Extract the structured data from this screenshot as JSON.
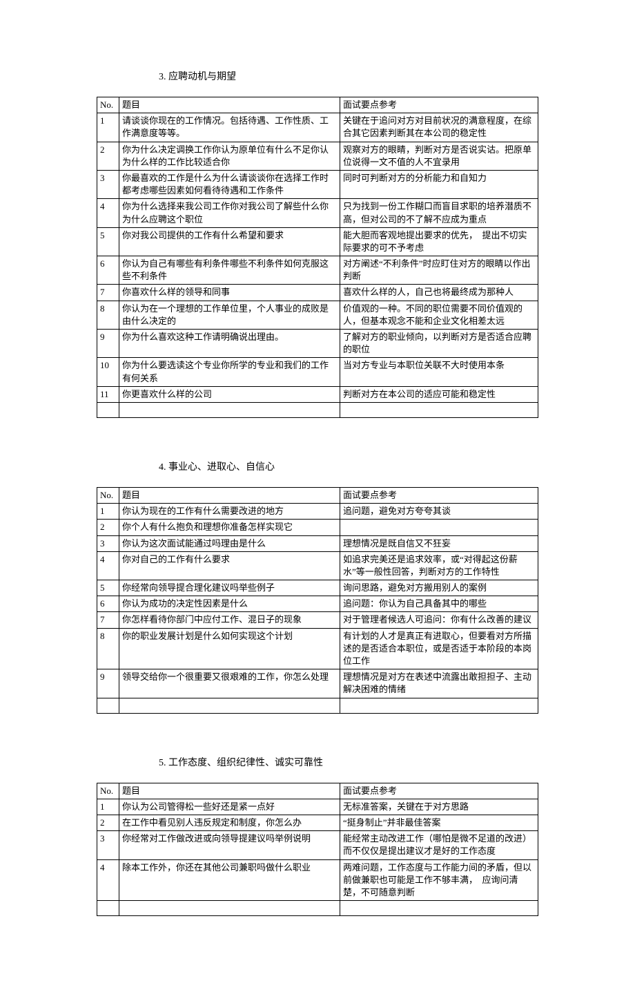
{
  "headers": {
    "no": "No.",
    "question": "题目",
    "ref": "面试要点参考"
  },
  "sections": [
    {
      "title": "3. 应聘动机与期望",
      "rows": [
        {
          "no": "1",
          "q": "请谈谈你现在的工作情况。包括待遇、工作性质、工作满意度等等。",
          "ref": "关键在于追问对方对目前状况的满意程度，在综合其它因素判断其在本公司的稳定性"
        },
        {
          "no": "2",
          "q": "你为什么决定调换工作你认为原单位有什么不足你认为什么样的工作比较适合你",
          "ref": "观察对方的眼睛，判断对方是否说实诂。把原单位说得一文不值的人不宜录用"
        },
        {
          "no": "3",
          "q": "你最喜欢的工作是什么为什么请谈谈你在选择工作时都考虑哪些因素如何看待待遇和工作条件",
          "ref": "同时可判断对方的分析能力和自知力"
        },
        {
          "no": "4",
          "q": "你为什么选择来我公司工作你对我公司了解些什么你为什么应聘这个职位",
          "ref": "只为找到一份工作糊口而盲目求职的培养潜质不高，但对公司的不了解不应成为重点"
        },
        {
          "no": "5",
          "q": "你对我公司提供的工作有什么希望和要求",
          "ref": "能大胆而客观地提出要求的优先，　提出不切实际要求的可不予考虑"
        },
        {
          "no": "6",
          "q": "你认为自己有哪些有利条件哪些不利条件如何克服这些不利条件",
          "ref": "对方阐述“不利条件”时应盯住对方的眼睛以作出判断"
        },
        {
          "no": "7",
          "q": "你喜欢什么样的领导和同事",
          "ref": "喜欢什么样的人，自己也将最终成为那种人"
        },
        {
          "no": "8",
          "q": "你认为在一个理想的工作单位里，个人事业的成败是由什么决定的",
          "ref": "价值观的一种。不同的职位需要不同价值观的人，但基本观念不能和企业文化相差太远"
        },
        {
          "no": "9",
          "q": "你为什么喜欢这种工作请明确说出理由。",
          "ref": "了解对方的职业倾向，以判断对方是否适合应聘的职位"
        },
        {
          "no": "10",
          "q": "你为什么要选读这个专业你所学的专业和我们的工作有何关系",
          "ref": "当对方专业与本职位关联不大时使用本条"
        },
        {
          "no": "11",
          "q": "你更喜欢什么样的公司",
          "ref": "判断对方在本公司的适应可能和稳定性"
        }
      ]
    },
    {
      "title": "4. 事业心、进取心、自信心",
      "rows": [
        {
          "no": "1",
          "q": "你认为现在的工作有什么需要改进的地方",
          "ref": "追问题，避免对方夸夸其谈"
        },
        {
          "no": "2",
          "q": "你个人有什么抱负和理想你准备怎样实现它",
          "ref": ""
        },
        {
          "no": "3",
          "q": "你认为这次面试能通过吗理由是什么",
          "ref": "理想情况是既自信又不狂妄"
        },
        {
          "no": "4",
          "q": "你对自己的工作有什么要求",
          "ref": "如追求完美还是追求效率，或“对得起这份薪水”等一般性回答，判断对方的工作特性"
        },
        {
          "no": "5",
          "q": "你经常向领导提合理化建议吗举些例子",
          "ref": "询问思路，避免对方搬用别人的案例"
        },
        {
          "no": "6",
          "q": "你认为成功的决定性因素是什么",
          "ref": "追问题：你认为自己具备其中的哪些"
        },
        {
          "no": "7",
          "q": "你怎样看待你部门中应付工作、混日子的现象",
          "ref": "对于管理者候选人可追问：你有什么改善的建议"
        },
        {
          "no": "8",
          "q": "你的职业发展计划是什么如何实现这个计划",
          "ref": "有计划的人才是真正有进取心，但要看对方所描述的是否适合本职位，或是否适于本阶段的本岗位工作"
        },
        {
          "no": "9",
          "q": "领导交给你一个很重要又很艰难的工作，你怎么处理",
          "ref": "理想情况是对方在表述中流露出敢担担子、主动解决困难的情绪"
        }
      ]
    },
    {
      "title": "5. 工作态度、组织纪律性、诚实可靠性",
      "rows": [
        {
          "no": "1",
          "q": "你认为公司管得松一些好还是紧一点好",
          "ref": "无标准答案，关键在于对方思路"
        },
        {
          "no": "2",
          "q": "在工作中看见别人违反规定和制度，你怎么办",
          "ref": "“挺身制止”并非最佳答案"
        },
        {
          "no": "3",
          "q": "你经常对工作做改进或向领导提建议吗举例说明",
          "ref": "能经常主动改进工作（哪怕是微不足道的改进）而不仅仅是提出建议才是好的工作态度"
        },
        {
          "no": "4",
          "q": "除本工作外，你还在其他公司兼职吗做什么职业",
          "ref": "两难问题，工作态度与工作能力间的矛盾，但以前做兼职也可能是工作不够丰满，　应询问清楚，不可随意判断"
        }
      ]
    }
  ]
}
